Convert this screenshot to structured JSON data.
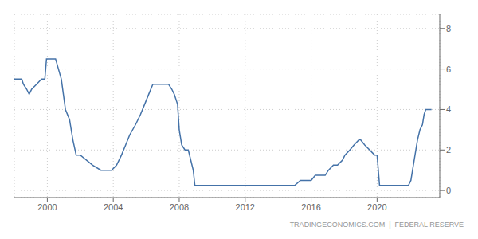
{
  "chart_data": {
    "type": "line",
    "annotation": "TRADINGECONOMICS.COM  |  FEDERAL RESERVE",
    "x": [
      1998.0,
      1998.45,
      1998.55,
      1998.75,
      1998.9,
      1999.05,
      1999.35,
      1999.65,
      1999.85,
      1999.95,
      2000.25,
      2000.5,
      2000.85,
      2001.1,
      2001.35,
      2001.55,
      2001.75,
      2002.0,
      2002.75,
      2003.25,
      2003.6,
      2003.9,
      2004.2,
      2004.5,
      2004.75,
      2005.0,
      2005.35,
      2005.65,
      2005.9,
      2006.15,
      2006.4,
      2006.65,
      2007.0,
      2007.35,
      2007.55,
      2007.7,
      2007.9,
      2008.0,
      2008.15,
      2008.35,
      2008.55,
      2008.7,
      2008.85,
      2008.95,
      2009.5,
      2010.0,
      2011.0,
      2012.0,
      2013.0,
      2014.0,
      2015.0,
      2015.35,
      2015.85,
      2016.0,
      2016.25,
      2016.85,
      2017.05,
      2017.35,
      2017.6,
      2017.9,
      2018.05,
      2018.35,
      2018.6,
      2018.9,
      2019.0,
      2019.25,
      2019.55,
      2019.85,
      2020.0,
      2020.15,
      2020.5,
      2021.0,
      2021.5,
      2021.9,
      2022.05,
      2022.15,
      2022.3,
      2022.45,
      2022.6,
      2022.75,
      2022.85,
      2022.95,
      2023.1,
      2023.3
    ],
    "values": [
      5.5,
      5.5,
      5.25,
      5.0,
      4.75,
      5.0,
      5.25,
      5.5,
      5.5,
      6.5,
      6.5,
      6.5,
      5.5,
      4.0,
      3.5,
      2.5,
      1.75,
      1.75,
      1.25,
      1.0,
      1.0,
      1.0,
      1.25,
      1.75,
      2.25,
      2.75,
      3.25,
      3.75,
      4.25,
      4.75,
      5.25,
      5.25,
      5.25,
      5.25,
      5.0,
      4.75,
      4.25,
      3.0,
      2.25,
      2.0,
      2.0,
      1.5,
      1.0,
      0.25,
      0.25,
      0.25,
      0.25,
      0.25,
      0.25,
      0.25,
      0.25,
      0.5,
      0.5,
      0.5,
      0.75,
      0.75,
      1.0,
      1.25,
      1.25,
      1.5,
      1.75,
      2.0,
      2.25,
      2.5,
      2.5,
      2.25,
      2.0,
      1.75,
      1.75,
      0.25,
      0.25,
      0.25,
      0.25,
      0.25,
      0.5,
      1.0,
      1.75,
      2.5,
      3.0,
      3.25,
      3.75,
      4.0,
      4.0,
      4.0
    ],
    "color": "#4472a8",
    "xlim": [
      1998.0,
      2023.8
    ],
    "ylim": [
      -0.35,
      8.7
    ],
    "xticks": [
      2000,
      2004,
      2008,
      2012,
      2016,
      2020
    ],
    "yticks": [
      0,
      2,
      4,
      6,
      8
    ],
    "grid": true
  }
}
